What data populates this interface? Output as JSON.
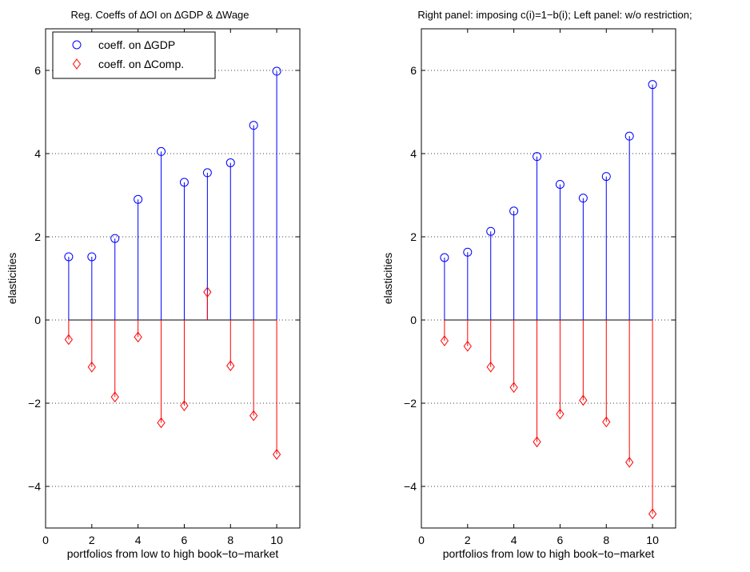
{
  "chart_data": [
    {
      "type": "stem",
      "title": "Reg. Coeffs of ∆OI on ∆GDP & ∆Wage",
      "xlabel": "portfolios from low to high book−to−market",
      "ylabel": "elasticities",
      "xlim": [
        0,
        11
      ],
      "ylim": [
        -5,
        7
      ],
      "xticks": [
        0,
        2,
        4,
        6,
        8,
        10
      ],
      "xtick_labels": [
        "0",
        "2",
        "4",
        "6",
        "8",
        "10"
      ],
      "yticks": [
        -4,
        -2,
        0,
        2,
        4,
        6
      ],
      "ytick_labels": [
        "−4",
        "−2",
        "0",
        "2",
        "4",
        "6"
      ],
      "grid": "horizontal-dotted",
      "legend": {
        "placement": "top-left"
      },
      "x": [
        1,
        2,
        3,
        4,
        5,
        6,
        7,
        8,
        9,
        10
      ],
      "series": [
        {
          "name": "coeff. on ∆GDP",
          "marker": "circle",
          "color": "#0000ff",
          "values": [
            1.52,
            1.52,
            1.96,
            2.9,
            4.05,
            3.31,
            3.54,
            3.78,
            4.68,
            5.98
          ]
        },
        {
          "name": "coeff. on ∆Comp.",
          "marker": "diamond",
          "color": "#ff0000",
          "values": [
            -0.47,
            -1.13,
            -1.85,
            -0.41,
            -2.47,
            -2.06,
            0.67,
            -1.1,
            -2.3,
            -3.23
          ]
        }
      ]
    },
    {
      "type": "stem",
      "title": "Right panel: imposing c(i)=1−b(i); Left panel: w/o restriction;",
      "xlabel": "portfolios from low to high book−to−market",
      "ylabel": "elasticities",
      "xlim": [
        0,
        11
      ],
      "ylim": [
        -5,
        7
      ],
      "xticks": [
        0,
        2,
        4,
        6,
        8,
        10
      ],
      "xtick_labels": [
        "0",
        "2",
        "4",
        "6",
        "8",
        "10"
      ],
      "yticks": [
        -4,
        -2,
        0,
        2,
        4,
        6
      ],
      "ytick_labels": [
        "−4",
        "−2",
        "0",
        "2",
        "4",
        "6"
      ],
      "grid": "horizontal-dotted",
      "x": [
        1,
        2,
        3,
        4,
        5,
        6,
        7,
        8,
        9,
        10
      ],
      "series": [
        {
          "marker": "circle",
          "color": "#0000ff",
          "values": [
            1.5,
            1.63,
            2.13,
            2.62,
            3.93,
            3.26,
            2.93,
            3.45,
            4.42,
            5.66
          ]
        },
        {
          "marker": "diamond",
          "color": "#ff0000",
          "values": [
            -0.5,
            -0.63,
            -1.13,
            -1.62,
            -2.93,
            -2.26,
            -1.93,
            -2.45,
            -3.42,
            -4.66
          ]
        }
      ]
    }
  ]
}
